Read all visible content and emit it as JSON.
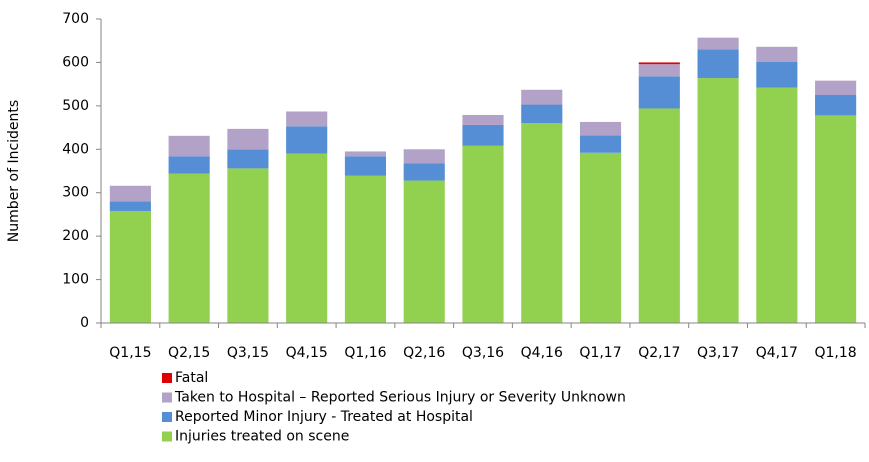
{
  "chart_data": {
    "type": "stacked_bar",
    "y_label": "Number of Incidents",
    "categories": [
      "Q1,15",
      "Q2,15",
      "Q3,15",
      "Q4,15",
      "Q1,16",
      "Q2,16",
      "Q3,16",
      "Q4,16",
      "Q1,17",
      "Q2,17",
      "Q3,17",
      "Q4,17",
      "Q1,18"
    ],
    "series": [
      {
        "name": "Fatal",
        "color": "#e00000",
        "values": [
          0,
          0,
          0,
          0,
          0,
          0,
          0,
          0,
          0,
          4,
          0,
          0,
          0
        ]
      },
      {
        "name": "Taken to Hospital – Reported Serious Injury or Severity Unknown",
        "color": "#b3a2c7",
        "values": [
          36,
          47,
          47,
          34,
          11,
          32,
          23,
          34,
          31,
          28,
          27,
          35,
          33
        ]
      },
      {
        "name": "Reported Minor Injury - Treated at Hospital",
        "color": "#558ed5",
        "values": [
          22,
          40,
          44,
          63,
          45,
          40,
          48,
          43,
          40,
          74,
          66,
          59,
          47
        ]
      },
      {
        "name": "Injuries treated on scene",
        "color": "#92d050",
        "values": [
          258,
          344,
          356,
          390,
          339,
          328,
          408,
          460,
          392,
          494,
          564,
          542,
          478
        ]
      }
    ],
    "ylim": [
      0,
      700
    ],
    "yticks": [
      0,
      100,
      200,
      300,
      400,
      500,
      600,
      700
    ],
    "grid": false
  }
}
